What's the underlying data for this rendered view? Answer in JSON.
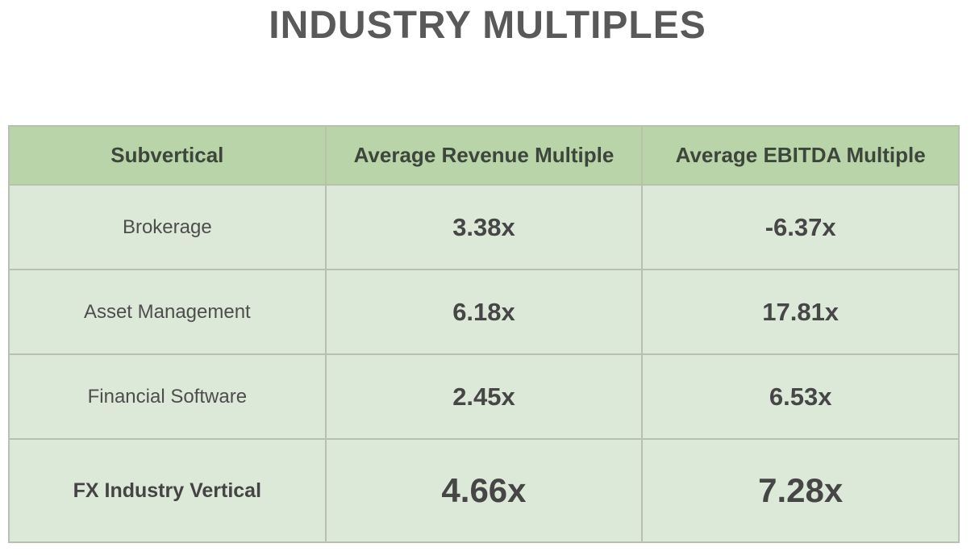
{
  "title": "INDUSTRY MULTIPLES",
  "table": {
    "headers": [
      "Subvertical",
      "Average Revenue Multiple",
      "Average EBITDA Multiple"
    ],
    "rows": [
      [
        "Brokerage",
        "3.38x",
        "-6.37x"
      ],
      [
        "Asset Management",
        "6.18x",
        "17.81x"
      ],
      [
        "Financial Software",
        "2.45x",
        "6.53x"
      ],
      [
        "FX Industry Vertical",
        "4.66x",
        "7.28x"
      ]
    ],
    "emphasized_row": "FX Industry Vertical"
  },
  "chart_data": {
    "type": "table",
    "title": "INDUSTRY MULTIPLES",
    "columns": [
      "Subvertical",
      "Average Revenue Multiple",
      "Average EBITDA Multiple"
    ],
    "categories": [
      "Brokerage",
      "Asset Management",
      "Financial Software",
      "FX Industry Vertical"
    ],
    "series": [
      {
        "name": "Average Revenue Multiple",
        "values": [
          3.38,
          6.18,
          2.45,
          4.66
        ]
      },
      {
        "name": "Average EBITDA Multiple",
        "values": [
          -6.37,
          17.81,
          6.53,
          7.28
        ]
      }
    ],
    "value_suffix": "x",
    "layout": "header row green, data rows light green, last row emphasized bold"
  },
  "colors": {
    "title_text": "#595959",
    "header_bg": "#b8d4a8",
    "header_text": "#3c463a",
    "row_bg": "#dde9d8",
    "border": "#b7c1ae",
    "value_text": "#464646",
    "label_text": "#4d4d4d",
    "page_bg": "#ffffff"
  }
}
